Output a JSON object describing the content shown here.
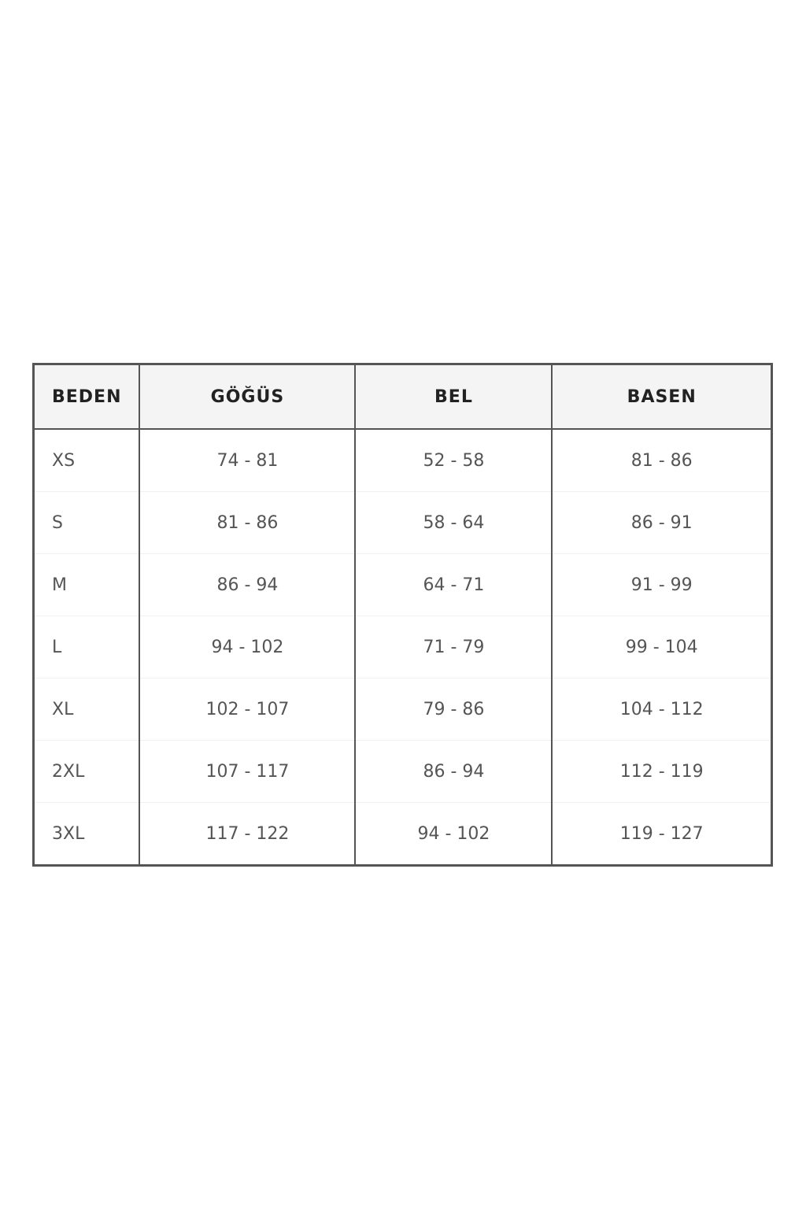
{
  "table": {
    "headers": [
      "BEDEN",
      "GÖĞÜS",
      "BEL",
      "BASEN"
    ],
    "rows": [
      [
        "XS",
        "74 - 81",
        "52 - 58",
        "81 - 86"
      ],
      [
        "S",
        "81 - 86",
        "58 - 64",
        "86 - 91"
      ],
      [
        "M",
        "86 - 94",
        "64 - 71",
        "91 - 99"
      ],
      [
        "L",
        "94 - 102",
        "71 - 79",
        "99 - 104"
      ],
      [
        "XL",
        "102 - 107",
        "79 - 86",
        "104 - 112"
      ],
      [
        "2XL",
        "107 - 117",
        "86 - 94",
        "112 - 119"
      ],
      [
        "3XL",
        "117 - 122",
        "94 - 102",
        "119 - 127"
      ]
    ]
  }
}
